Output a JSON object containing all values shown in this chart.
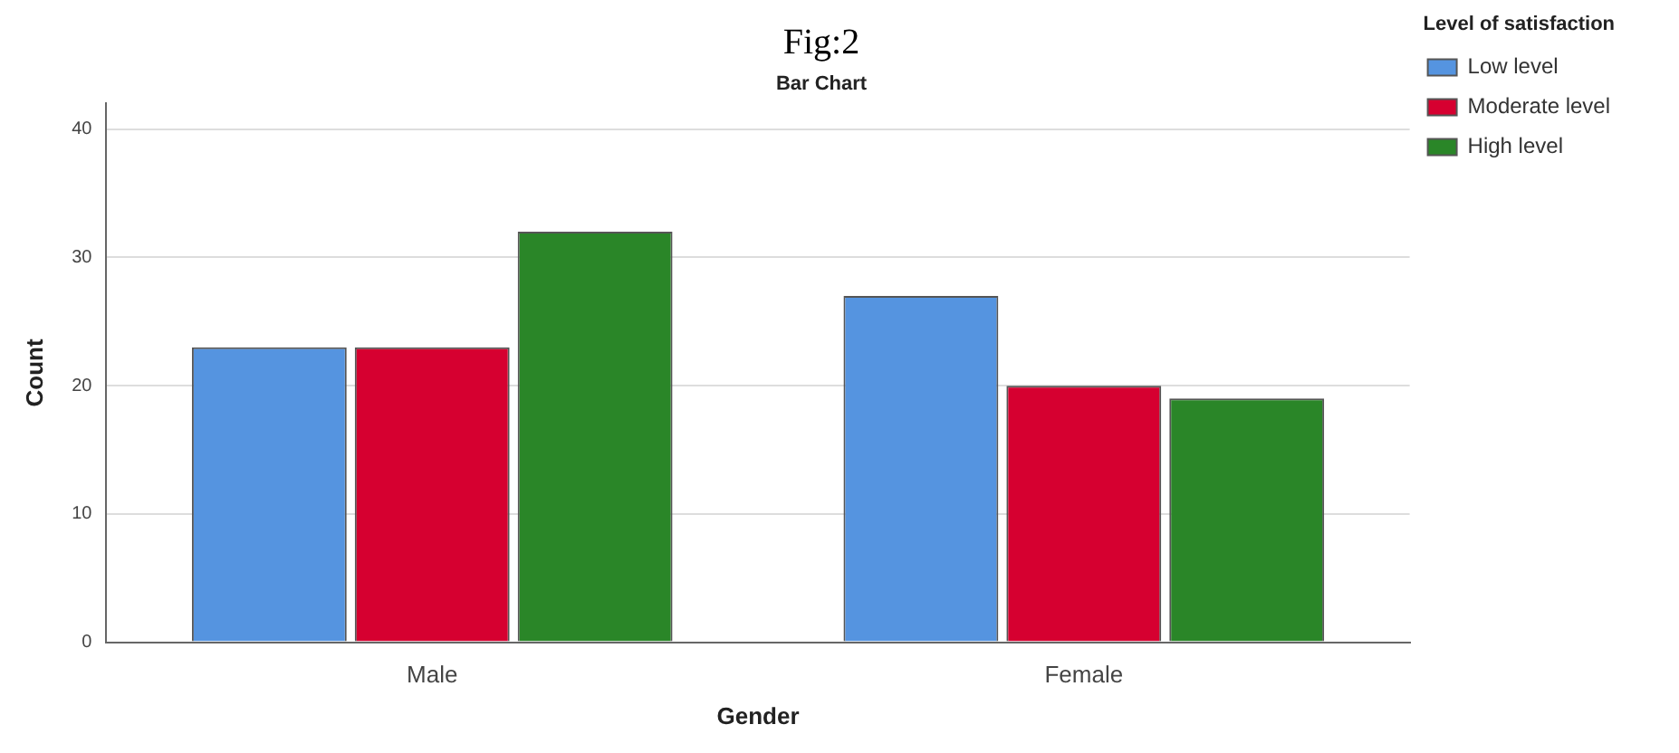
{
  "chart_data": {
    "type": "bar",
    "title": "Fig:2",
    "subtitle": "Bar Chart",
    "xlabel": "Gender",
    "ylabel": "Count",
    "legend_title": "Level of satisfaction",
    "categories": [
      "Male",
      "Female"
    ],
    "series": [
      {
        "name": "Low level",
        "color": "#5594e0",
        "values": [
          23,
          27
        ]
      },
      {
        "name": "Moderate level",
        "color": "#d60030",
        "values": [
          23,
          20
        ]
      },
      {
        "name": "High level",
        "color": "#2a8628",
        "values": [
          32,
          19
        ]
      }
    ],
    "ylim": [
      0,
      42
    ],
    "yticks": [
      0,
      10,
      20,
      30,
      40
    ],
    "grid": "y",
    "legend": "top right"
  }
}
